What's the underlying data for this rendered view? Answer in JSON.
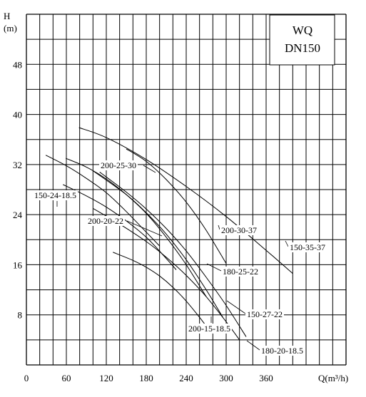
{
  "chart_data": {
    "type": "line",
    "title_lines": [
      "WQ",
      "DN150"
    ],
    "ylabel_lines": [
      "H",
      "(m)"
    ],
    "xlabel": "Q(m³/h)",
    "xlim": [
      0,
      480
    ],
    "ylim": [
      0,
      56
    ],
    "x_ticks": [
      0,
      60,
      120,
      180,
      240,
      300,
      360
    ],
    "y_ticks": [
      8,
      16,
      24,
      32,
      40,
      48
    ],
    "grid": true,
    "series": [
      {
        "name": "150-24-18.5",
        "x": [
          29,
          60,
          90,
          120,
          150,
          180,
          200
        ],
        "y": [
          33.5,
          31.8,
          29.8,
          27.5,
          24.5,
          21.2,
          19.0
        ]
      },
      {
        "name": "200-25-30",
        "x": [
          59,
          90,
          120,
          150,
          180,
          210,
          240,
          270
        ],
        "y": [
          33.0,
          31.6,
          29.7,
          27.2,
          24.2,
          20.4,
          16.0,
          10.9
        ]
      },
      {
        "name": "200-30-37",
        "x": [
          150,
          180,
          210,
          240,
          270,
          300
        ],
        "y": [
          34.5,
          32.5,
          29.6,
          26.0,
          21.5,
          16.2
        ]
      },
      {
        "name": "150-35-37",
        "x": [
          79,
          120,
          180,
          240,
          300,
          360,
          400
        ],
        "y": [
          37.9,
          36.3,
          32.8,
          28.5,
          23.7,
          18.3,
          14.6
        ]
      },
      {
        "name": "200-20-22",
        "x": [
          55,
          90,
          120,
          150,
          180,
          210,
          225
        ],
        "y": [
          28.8,
          27.0,
          25.2,
          23.0,
          20.4,
          17.0,
          15.2
        ]
      },
      {
        "name": "180-25-22",
        "x": [
          100,
          150,
          180,
          210,
          240,
          270,
          295
        ],
        "y": [
          31.0,
          27.2,
          24.3,
          20.9,
          16.8,
          12.0,
          7.6
        ]
      },
      {
        "name": "150-27-22",
        "x": [
          110,
          150,
          180,
          210,
          240,
          270,
          300,
          330
        ],
        "y": [
          30.8,
          27.6,
          24.9,
          21.8,
          18.2,
          14.0,
          9.5,
          4.5
        ]
      },
      {
        "name": "200-15-18.5",
        "x": [
          130,
          160,
          180,
          200,
          220,
          240,
          260,
          275
        ],
        "y": [
          18.0,
          16.7,
          15.6,
          14.2,
          12.4,
          10.2,
          7.6,
          5.5
        ]
      },
      {
        "name": "180-20-18.5",
        "x": [
          100,
          140,
          180,
          210,
          240,
          270,
          300,
          320
        ],
        "y": [
          25.0,
          22.5,
          19.7,
          17.2,
          14.3,
          10.9,
          6.9,
          4.0
        ]
      }
    ],
    "labels": [
      {
        "text": "150-24-18.5",
        "series": "150-24-18.5"
      },
      {
        "text": "200-25-30",
        "series": "200-25-30"
      },
      {
        "text": "200-30-37",
        "series": "200-30-37"
      },
      {
        "text": "150-35-37",
        "series": "150-35-37"
      },
      {
        "text": "200-20-22",
        "series": "200-20-22"
      },
      {
        "text": "180-25-22",
        "series": "180-25-22"
      },
      {
        "text": "150-27-22",
        "series": "150-27-22"
      },
      {
        "text": "200-15-18.5",
        "series": "200-15-18.5"
      },
      {
        "text": "180-20-18.5",
        "series": "180-20-18.5"
      }
    ]
  }
}
